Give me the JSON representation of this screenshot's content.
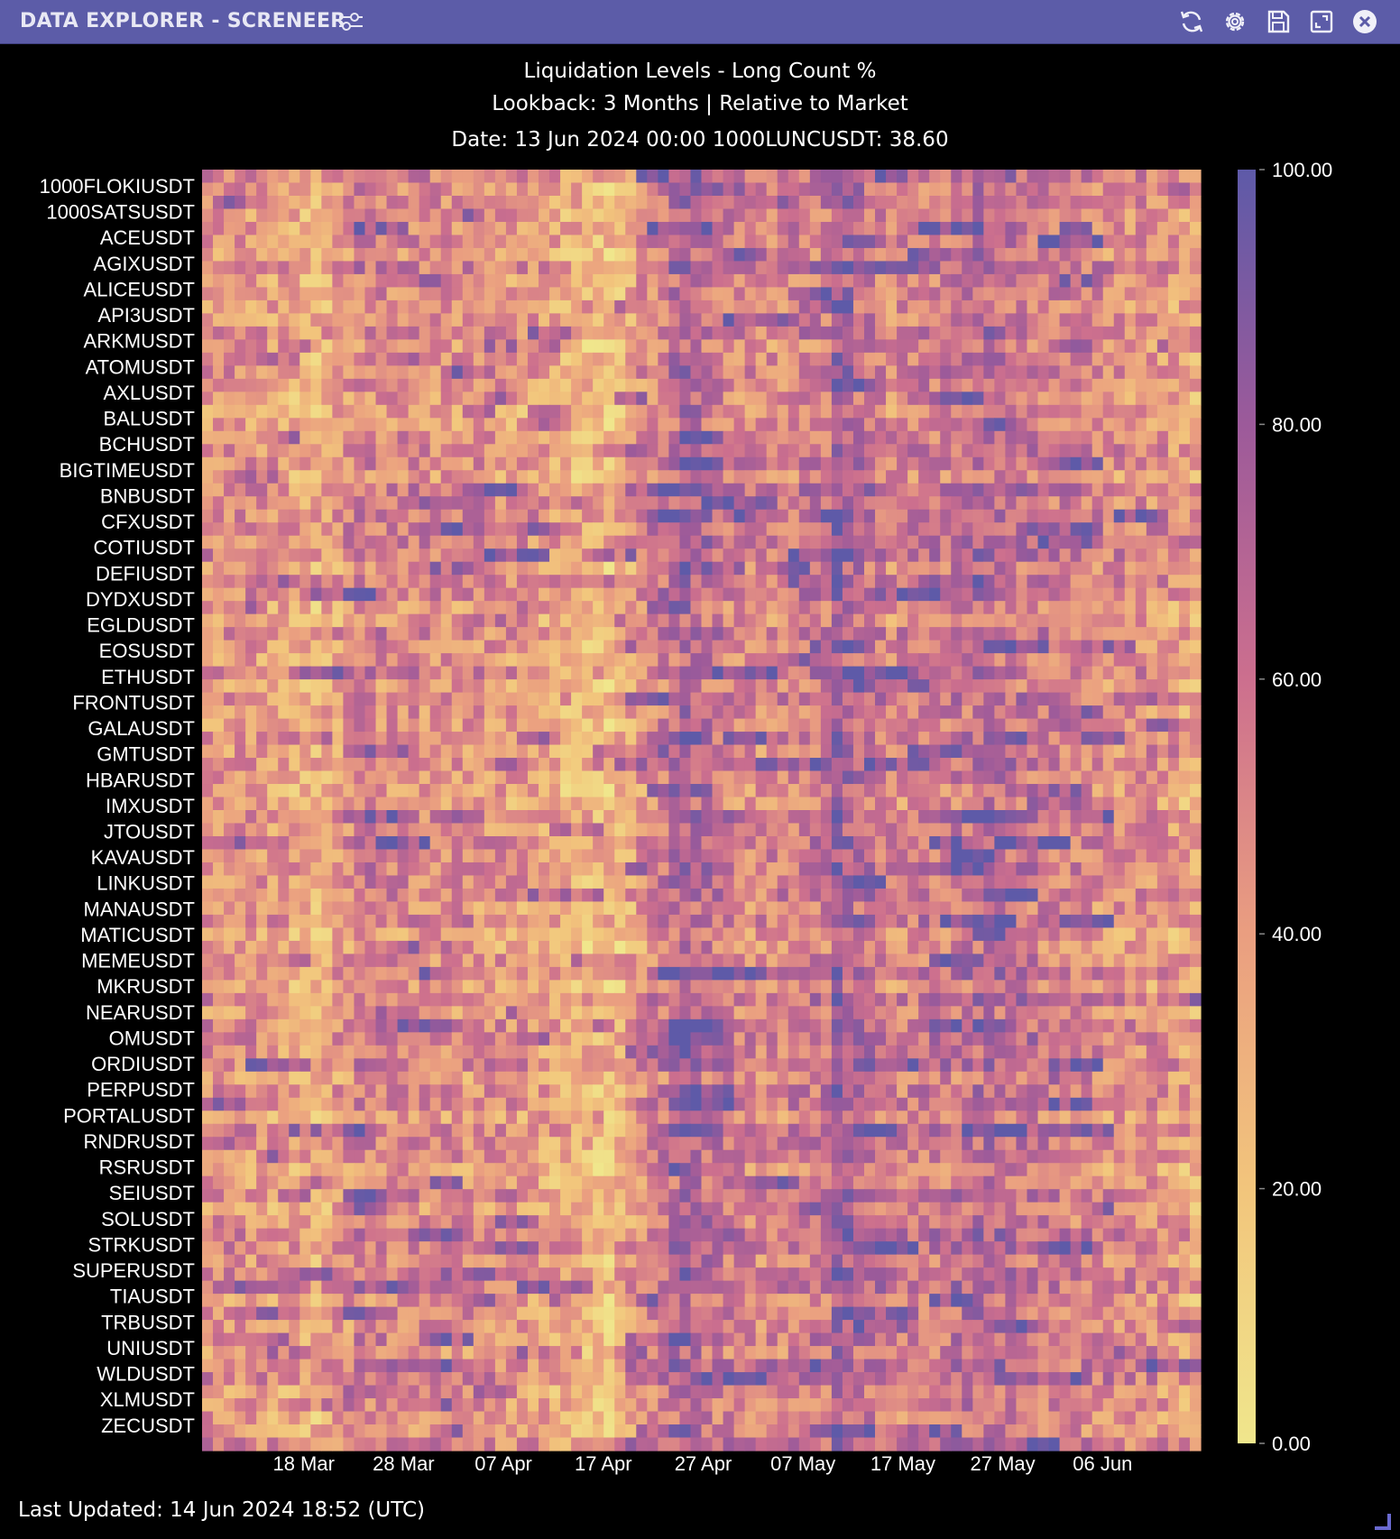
{
  "window": {
    "title": "DATA EXPLORER - SCRENEER"
  },
  "icons": {
    "filter": "sliders-icon",
    "refresh": "refresh-icon",
    "settings": "gear-icon",
    "save": "save-icon",
    "expand": "expand-icon",
    "close": "close-icon"
  },
  "header": {
    "line1": "Liquidation Levels - Long Count %",
    "line2": "Lookback: 3 Months | Relative to Market",
    "line3": "Date: 13 Jun 2024 00:00 1000LUNCUSDT: 38.60"
  },
  "footer": {
    "last_updated": "Last Updated: 14 Jun 2024 18:52 (UTC)"
  },
  "chart_data": {
    "type": "heatmap",
    "title": "Liquidation Levels - Long Count %",
    "subtitle": "Lookback: 3 Months | Relative to Market",
    "rows": 98,
    "cols": 92,
    "y_tick_labels": [
      "1000FLOKIUSDT",
      "1000SATSUSDT",
      "ACEUSDT",
      "AGIXUSDT",
      "ALICEUSDT",
      "API3USDT",
      "ARKMUSDT",
      "ATOMUSDT",
      "AXLUSDT",
      "BALUSDT",
      "BCHUSDT",
      "BIGTIMEUSDT",
      "BNBUSDT",
      "CFXUSDT",
      "COTIUSDT",
      "DEFIUSDT",
      "DYDXUSDT",
      "EGLDUSDT",
      "EOSUSDT",
      "ETHUSDT",
      "FRONTUSDT",
      "GALAUSDT",
      "GMTUSDT",
      "HBARUSDT",
      "IMXUSDT",
      "JTOUSDT",
      "KAVAUSDT",
      "LINKUSDT",
      "MANAUSDT",
      "MATICUSDT",
      "MEMEUSDT",
      "MKRUSDT",
      "NEARUSDT",
      "OMUSDT",
      "ORDIUSDT",
      "PERPUSDT",
      "PORTALUSDT",
      "RNDRUSDT",
      "RSRUSDT",
      "SEIUSDT",
      "SOLUSDT",
      "STRKUSDT",
      "SUPERUSDT",
      "TIAUSDT",
      "TRBUSDT",
      "UNIUSDT",
      "WLDUSDT",
      "XLMUSDT",
      "ZECUSDT"
    ],
    "x_tick_labels": [
      "18 Mar",
      "28 Mar",
      "07 Apr",
      "17 Apr",
      "27 Apr",
      "07 May",
      "17 May",
      "27 May",
      "06 Jun"
    ],
    "x_tick_days": [
      10,
      20,
      30,
      40,
      50,
      60,
      70,
      80,
      90
    ],
    "x_range_days": [
      0,
      100
    ],
    "colorbar": {
      "min": 0,
      "max": 100,
      "tick_labels": [
        "100.00",
        "80.00",
        "60.00",
        "40.00",
        "20.00",
        "0.00"
      ],
      "tick_values": [
        100,
        80,
        60,
        40,
        20,
        0
      ],
      "colors": [
        "#f0e68c",
        "#f2c57c",
        "#ea9e80",
        "#cc6f8e",
        "#9c5a9a",
        "#5e5aa8"
      ]
    },
    "column_profile": [
      [
        0,
        45
      ],
      [
        5,
        42
      ],
      [
        10,
        30
      ],
      [
        14,
        52
      ],
      [
        19,
        48
      ],
      [
        25,
        45
      ],
      [
        30,
        40
      ],
      [
        37,
        22
      ],
      [
        44,
        72
      ],
      [
        47,
        58
      ],
      [
        51,
        48
      ],
      [
        57,
        58
      ],
      [
        58,
        78
      ],
      [
        63,
        50
      ],
      [
        68,
        57
      ],
      [
        72,
        66
      ],
      [
        80,
        50
      ],
      [
        88,
        44
      ],
      [
        92,
        32
      ],
      [
        97,
        30
      ]
    ]
  }
}
